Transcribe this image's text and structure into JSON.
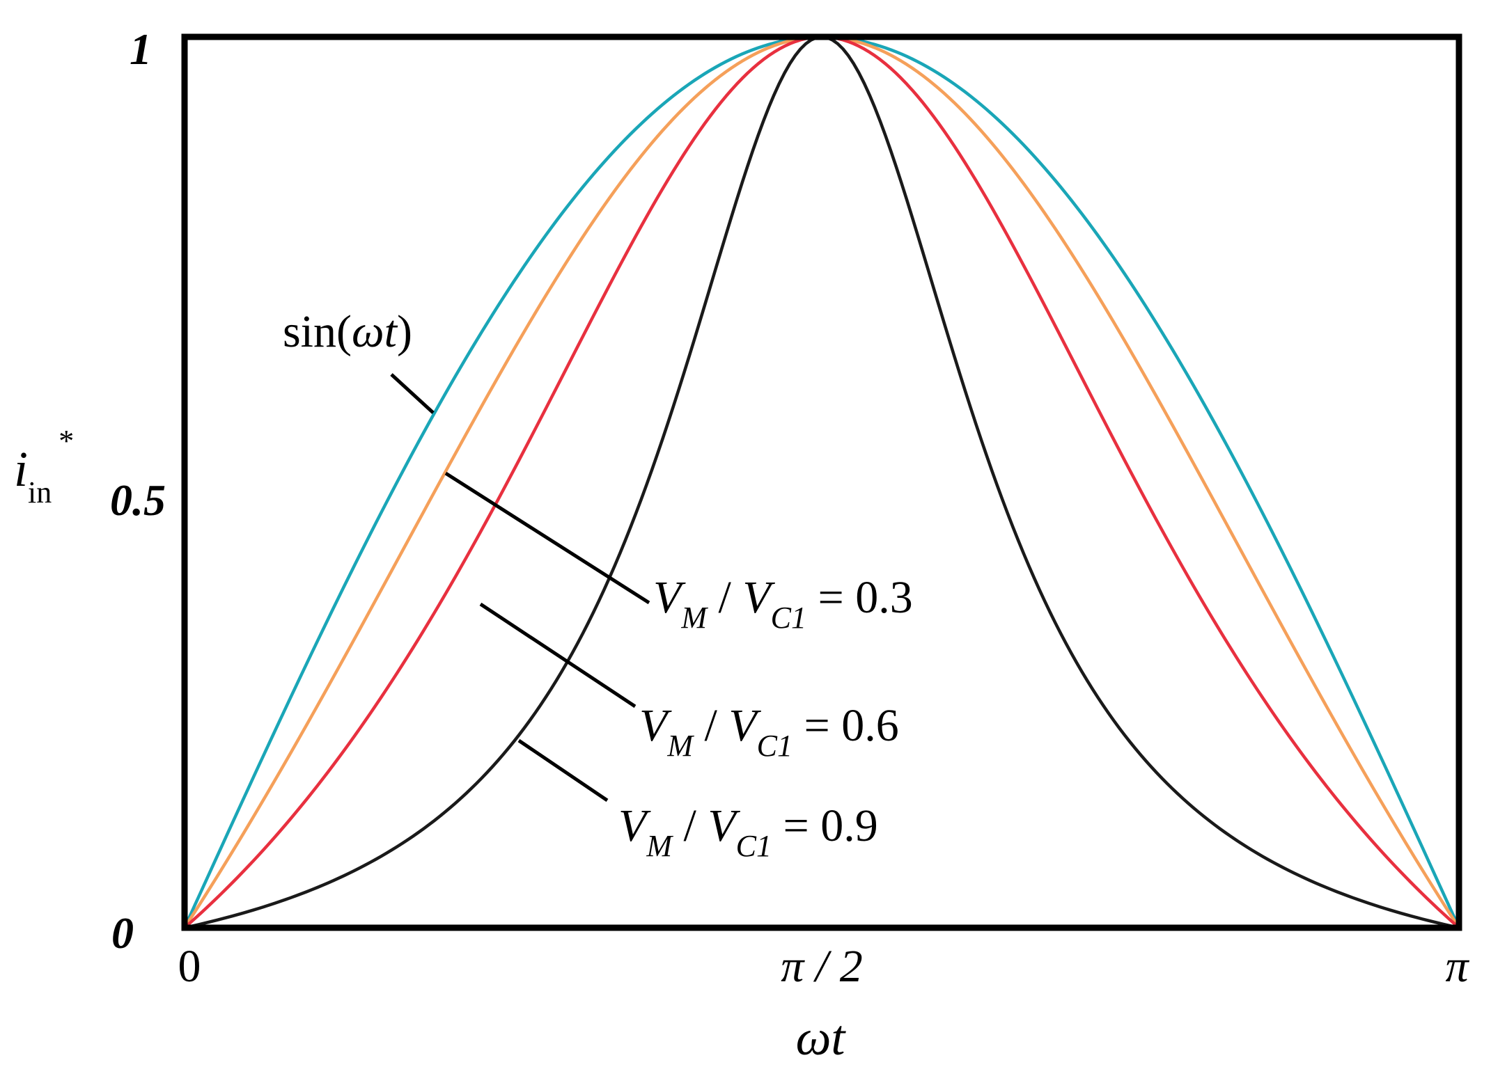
{
  "chart_data": {
    "type": "line",
    "title": "",
    "xlabel": "ωt",
    "ylabel": "i_in*",
    "ylabel_parts": {
      "base": "i",
      "sub": "in",
      "sup": "*"
    },
    "xlim": [
      0,
      3.14159
    ],
    "ylim": [
      0,
      1
    ],
    "grid": false,
    "legend": "none",
    "x_ticks": [
      {
        "value": 0,
        "label": "0"
      },
      {
        "value": 1.5708,
        "label": "π / 2"
      },
      {
        "value": 3.14159,
        "label": "π"
      }
    ],
    "y_ticks": [
      {
        "value": 0,
        "label": "0"
      },
      {
        "value": 0.5,
        "label": "0.5"
      },
      {
        "value": 1,
        "label": "1"
      }
    ],
    "x": [
      0,
      0.15708,
      0.31416,
      0.47124,
      0.62832,
      0.7854,
      0.94248,
      1.09956,
      1.25664,
      1.41372,
      1.5708,
      1.72788,
      1.88496,
      2.04204,
      2.19911,
      2.35619,
      2.51327,
      2.67035,
      2.82743,
      2.98451,
      3.14159
    ],
    "series": [
      {
        "name": "sin(ωt)",
        "color": "#1aa6b7",
        "m": 0,
        "values": [
          0,
          0.156,
          0.309,
          0.454,
          0.588,
          0.707,
          0.809,
          0.891,
          0.951,
          0.988,
          1,
          0.988,
          0.951,
          0.891,
          0.809,
          0.707,
          0.588,
          0.454,
          0.309,
          0.156,
          0
        ]
      },
      {
        "name": "V_M / V_C1 = 0.3",
        "color": "#f5a05a",
        "m": 0.3,
        "values": [
          0,
          0.117,
          0.238,
          0.368,
          0.499,
          0.628,
          0.75,
          0.851,
          0.932,
          0.983,
          1,
          0.983,
          0.932,
          0.851,
          0.75,
          0.628,
          0.499,
          0.368,
          0.238,
          0.117,
          0
        ]
      },
      {
        "name": "V_M / V_C1 = 0.6",
        "color": "#e8303f",
        "m": 0.6,
        "values": [
          0,
          0.069,
          0.145,
          0.235,
          0.339,
          0.463,
          0.6,
          0.74,
          0.869,
          0.966,
          1,
          0.966,
          0.869,
          0.74,
          0.6,
          0.463,
          0.339,
          0.235,
          0.145,
          0.069,
          0
        ]
      },
      {
        "name": "V_M / V_C1 = 0.9",
        "color": "#1a1a1a",
        "m": 0.9,
        "values": [
          0,
          0.018,
          0.04,
          0.07,
          0.112,
          0.174,
          0.27,
          0.424,
          0.659,
          0.913,
          1,
          0.913,
          0.659,
          0.424,
          0.27,
          0.174,
          0.112,
          0.07,
          0.04,
          0.018,
          0
        ]
      }
    ],
    "annotations": [
      {
        "series": 0,
        "text": "sin(ωt)",
        "parts": {
          "func": "sin(",
          "var": "ωt",
          "close": ")"
        }
      },
      {
        "series": 1,
        "text": "V_M / V_C1 = 0.3",
        "parts": {
          "v": "V",
          "m": "M",
          "slash": " / ",
          "c": "C1",
          "rhs": " = 0.3"
        }
      },
      {
        "series": 2,
        "text": "V_M / V_C1 = 0.6",
        "parts": {
          "v": "V",
          "m": "M",
          "slash": " / ",
          "c": "C1",
          "rhs": " = 0.6"
        }
      },
      {
        "series": 3,
        "text": "V_M / V_C1 = 0.9",
        "parts": {
          "v": "V",
          "m": "M",
          "slash": " / ",
          "c": "C1",
          "rhs": " = 0.9"
        }
      }
    ]
  }
}
